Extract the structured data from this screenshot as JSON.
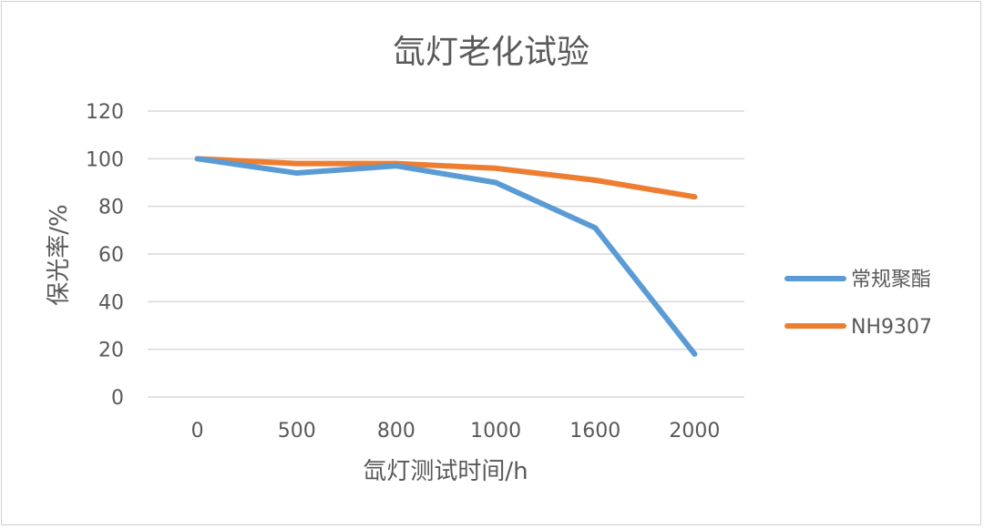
{
  "chart_data": {
    "type": "line",
    "title": "氙灯老化试验",
    "xlabel": "氙灯测试时间/h",
    "ylabel": "保光率/%",
    "categories": [
      "0",
      "500",
      "800",
      "1000",
      "1600",
      "2000"
    ],
    "ylim": [
      0,
      120
    ],
    "yticks": [
      "0",
      "20",
      "40",
      "60",
      "80",
      "100",
      "120"
    ],
    "grid": true,
    "legend_position": "right",
    "series": [
      {
        "name": "常规聚酯",
        "color": "#5b9bd5",
        "values": [
          100,
          94,
          97,
          90,
          71,
          18
        ]
      },
      {
        "name": "NH9307",
        "color": "#ed7d31",
        "values": [
          100,
          98,
          98,
          96,
          91,
          84
        ]
      }
    ]
  }
}
